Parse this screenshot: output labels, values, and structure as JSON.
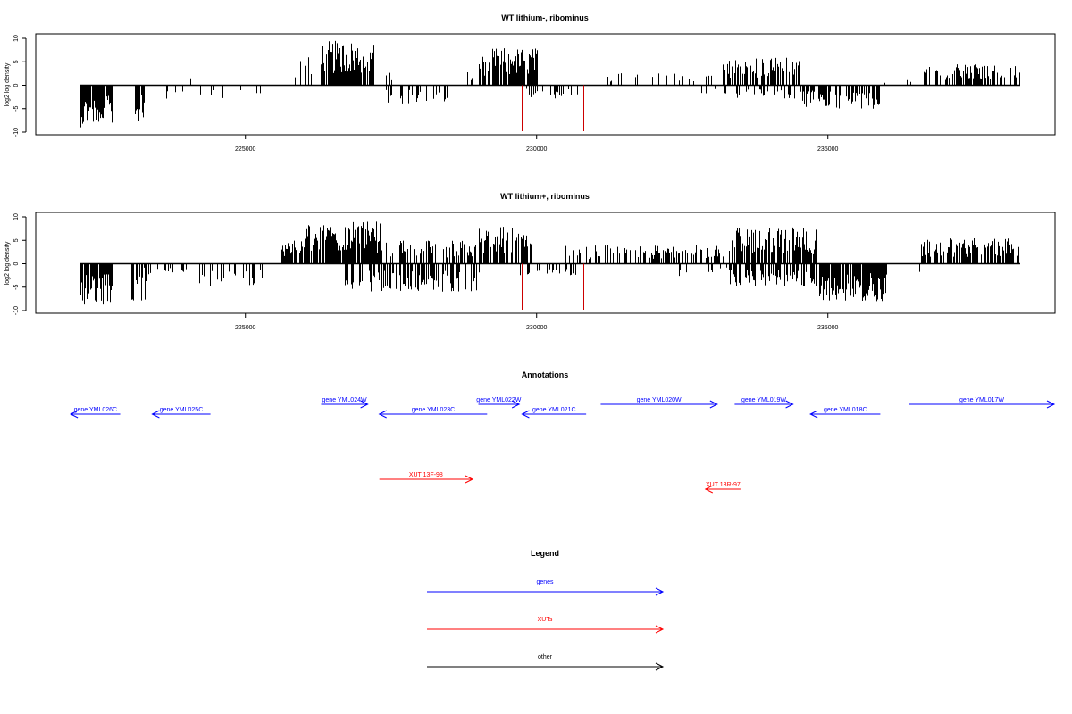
{
  "colors": {
    "signal": "#000000",
    "marker": "#cc0000",
    "gene": "#0000ff",
    "xut": "#ff0000",
    "other": "#000000"
  },
  "chart_data": [
    {
      "type": "bar",
      "title": "WT lithium-, ribominus",
      "ylabel": "log2 log density",
      "xlabel": "",
      "xlim": [
        221400,
        238900
      ],
      "ylim": [
        -10,
        10
      ],
      "xticks": [
        225000,
        230000,
        235000
      ],
      "yticks": [
        10,
        5,
        0,
        -5,
        -10
      ],
      "grid": false,
      "red_markers": [
        229750,
        230800
      ],
      "regions": [
        {
          "x": [
            222150,
            222700
          ],
          "amp": -9,
          "density": 0.9
        },
        {
          "x": [
            223100,
            223250
          ],
          "amp": -8,
          "density": 0.7
        },
        {
          "x": [
            223500,
            225500
          ],
          "amp": -3,
          "density": 0.12
        },
        {
          "x": [
            224000,
            224500
          ],
          "amp": 2,
          "density": 0.05
        },
        {
          "x": [
            225800,
            226300
          ],
          "amp": 6,
          "density": 0.25
        },
        {
          "x": [
            226300,
            227200
          ],
          "amp": 9.5,
          "density": 0.85
        },
        {
          "x": [
            227100,
            227500
          ],
          "amp": 3,
          "density": 0.25
        },
        {
          "x": [
            227400,
            228500
          ],
          "amp": -4,
          "density": 0.3
        },
        {
          "x": [
            228700,
            229000
          ],
          "amp": 3,
          "density": 0.2
        },
        {
          "x": [
            229000,
            230000
          ],
          "amp": 8,
          "density": 0.85
        },
        {
          "x": [
            229700,
            230700
          ],
          "amp": -3,
          "density": 0.2
        },
        {
          "x": [
            231200,
            233000
          ],
          "amp": 3,
          "density": 0.15
        },
        {
          "x": [
            232600,
            233200
          ],
          "amp": -2,
          "density": 0.08
        },
        {
          "x": [
            233200,
            234500
          ],
          "amp": 6,
          "density": 0.6
        },
        {
          "x": [
            233200,
            234800
          ],
          "amp": -3,
          "density": 0.25
        },
        {
          "x": [
            234500,
            235900
          ],
          "amp": -5,
          "density": 0.5
        },
        {
          "x": [
            235800,
            236600
          ],
          "amp": 1.5,
          "density": 0.08
        },
        {
          "x": [
            236600,
            238300
          ],
          "amp": 4.5,
          "density": 0.45
        }
      ]
    },
    {
      "type": "bar",
      "title": "WT lithium+, ribominus",
      "ylabel": "log2 log density",
      "xlabel": "",
      "xlim": [
        221400,
        238900
      ],
      "ylim": [
        -10,
        10
      ],
      "xticks": [
        225000,
        230000,
        235000
      ],
      "yticks": [
        10,
        5,
        0,
        -5,
        -10
      ],
      "grid": false,
      "red_markers": [
        229750,
        230800
      ],
      "regions": [
        {
          "x": [
            222150,
            222700
          ],
          "amp": -9,
          "density": 0.95
        },
        {
          "x": [
            222150,
            222200
          ],
          "amp": 3.5,
          "density": 0.5
        },
        {
          "x": [
            223000,
            223300
          ],
          "amp": -8,
          "density": 0.7
        },
        {
          "x": [
            223200,
            224000
          ],
          "amp": -2.5,
          "density": 0.25
        },
        {
          "x": [
            224200,
            225300
          ],
          "amp": -5,
          "density": 0.45
        },
        {
          "x": [
            225600,
            226000
          ],
          "amp": 5,
          "density": 0.6
        },
        {
          "x": [
            226000,
            227300
          ],
          "amp": 9,
          "density": 0.85
        },
        {
          "x": [
            226700,
            229000
          ],
          "amp": -6,
          "density": 0.55
        },
        {
          "x": [
            227000,
            229000
          ],
          "amp": 5,
          "density": 0.5
        },
        {
          "x": [
            229000,
            229900
          ],
          "amp": 8,
          "density": 0.85
        },
        {
          "x": [
            229700,
            230700
          ],
          "amp": -2.5,
          "density": 0.25
        },
        {
          "x": [
            230500,
            233200
          ],
          "amp": 4,
          "density": 0.5
        },
        {
          "x": [
            232400,
            233300
          ],
          "amp": -3,
          "density": 0.25
        },
        {
          "x": [
            233300,
            234800
          ],
          "amp": 8,
          "density": 0.75
        },
        {
          "x": [
            233300,
            234800
          ],
          "amp": -5,
          "density": 0.65
        },
        {
          "x": [
            234800,
            236000
          ],
          "amp": -8,
          "density": 0.9
        },
        {
          "x": [
            236000,
            236600
          ],
          "amp": -2,
          "density": 0.1
        },
        {
          "x": [
            236600,
            238300
          ],
          "amp": 5.5,
          "density": 0.75
        }
      ]
    }
  ],
  "annotations": {
    "title": "Annotations",
    "genes": [
      {
        "label": "gene YML026C",
        "start": 222000,
        "end": 222850,
        "strand": "-",
        "row": 1
      },
      {
        "label": "gene YML025C",
        "start": 223400,
        "end": 224400,
        "strand": "-",
        "row": 1
      },
      {
        "label": "gene YML024W",
        "start": 226300,
        "end": 227100,
        "strand": "+",
        "row": 0
      },
      {
        "label": "gene YML023C",
        "start": 227300,
        "end": 229150,
        "strand": "-",
        "row": 1
      },
      {
        "label": "gene YML022W",
        "start": 229000,
        "end": 229700,
        "strand": "+",
        "row": 0
      },
      {
        "label": "gene YML021C",
        "start": 229750,
        "end": 230850,
        "strand": "-",
        "row": 1
      },
      {
        "label": "gene YML020W",
        "start": 231100,
        "end": 233100,
        "strand": "+",
        "row": 0
      },
      {
        "label": "gene YML019W",
        "start": 233400,
        "end": 234400,
        "strand": "+",
        "row": 0
      },
      {
        "label": "gene YML018C",
        "start": 234700,
        "end": 235900,
        "strand": "-",
        "row": 1
      },
      {
        "label": "gene YML017W",
        "start": 236400,
        "end": 238900,
        "strand": "+",
        "row": 0
      }
    ],
    "xuts": [
      {
        "label": "XUT 13F-98",
        "start": 227300,
        "end": 228900,
        "strand": "+",
        "row": 2
      },
      {
        "label": "XUT 13R-97",
        "start": 232900,
        "end": 233500,
        "strand": "-",
        "row": 3
      }
    ]
  },
  "legend": {
    "title": "Legend",
    "items": [
      {
        "label": "genes",
        "color": "#0000ff"
      },
      {
        "label": "XUTs",
        "color": "#ff0000"
      },
      {
        "label": "other",
        "color": "#000000"
      }
    ]
  }
}
